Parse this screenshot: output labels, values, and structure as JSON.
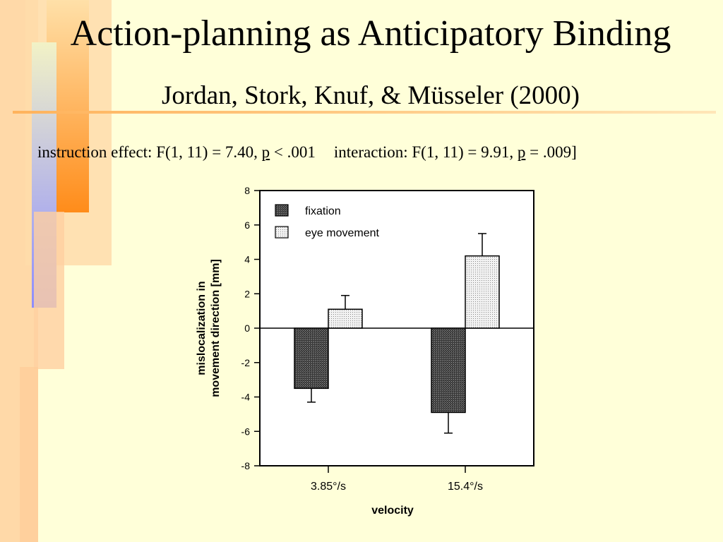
{
  "slide": {
    "title": "Action-planning as Anticipatory Binding",
    "subtitle": "Jordan, Stork, Knuf, & Müsseler (2000)",
    "stats": {
      "s1": "instruction effect: F(1, 11) = 7.40,  ",
      "s2": "p",
      "s3": " < .001",
      "s4": "interaction: F(1, 11) = 9.91, ",
      "s5": "p",
      "s6": " = .009]"
    }
  },
  "chart_data": {
    "type": "bar",
    "categories": [
      "3.85°/s",
      "15.4°/s"
    ],
    "series": [
      {
        "name": "fixation",
        "values": [
          -3.5,
          -4.9
        ],
        "error_bars": [
          0.8,
          1.2
        ]
      },
      {
        "name": "eye movement",
        "values": [
          1.1,
          4.2
        ],
        "error_bars": [
          0.8,
          1.3
        ]
      }
    ],
    "xlabel": "velocity",
    "ylabel_line1": "mislocalization in",
    "ylabel_line2": "movement direction [mm]",
    "ylim": [
      -8,
      8
    ],
    "yticks": [
      "8",
      "6",
      "4",
      "2",
      "0",
      "-2",
      "-4",
      "-6",
      "-8"
    ],
    "legend_placement": "top-left",
    "grid": false,
    "colors": {
      "fixation": "#555555",
      "eye_movement": "#dddddd"
    }
  }
}
